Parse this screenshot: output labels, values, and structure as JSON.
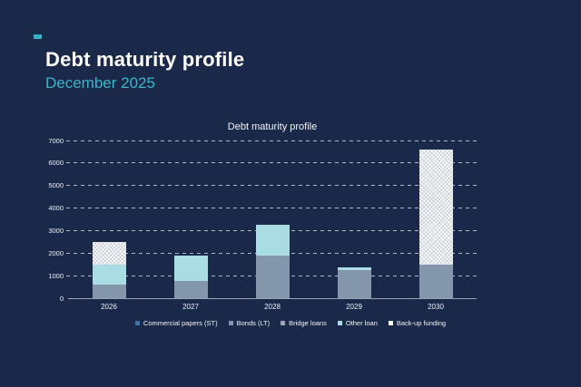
{
  "page": {
    "title": "Debt maturity profile",
    "subtitle": "December 2025",
    "accent_color": "#36b2c8",
    "background_color": "#1a2949"
  },
  "chart_data": {
    "type": "bar",
    "stacked": true,
    "title": "Debt maturity profile",
    "categories": [
      "2026",
      "2027",
      "2028",
      "2029",
      "2030"
    ],
    "series": [
      {
        "name": "Commercial papers (ST)",
        "color": "#4470ae",
        "hatched": false,
        "values": [
          0,
          0,
          0,
          0,
          0
        ]
      },
      {
        "name": "Bonds (LT)",
        "color": "#8496ab",
        "hatched": false,
        "values": [
          600,
          750,
          1900,
          1250,
          1500
        ]
      },
      {
        "name": "Bridge loans",
        "color": "#9aa3b2",
        "hatched": false,
        "values": [
          0,
          0,
          0,
          0,
          0
        ]
      },
      {
        "name": "Other loan",
        "color": "#a9dce3",
        "hatched": false,
        "values": [
          900,
          1150,
          1350,
          100,
          0
        ]
      },
      {
        "name": "Back-up funding",
        "color": "#ffffff",
        "hatched": true,
        "values": [
          1000,
          0,
          0,
          0,
          5100
        ]
      }
    ],
    "totals": [
      2500,
      1900,
      3250,
      1350,
      6600
    ],
    "xlabel": "",
    "ylabel": "",
    "ylim": [
      0,
      7000
    ],
    "ytick_interval": 1000,
    "yticks": [
      "0",
      "1000",
      "2000",
      "3000",
      "4000",
      "5000",
      "6000",
      "7000"
    ],
    "grid": "horizontal-dashed",
    "legend_position": "bottom"
  }
}
